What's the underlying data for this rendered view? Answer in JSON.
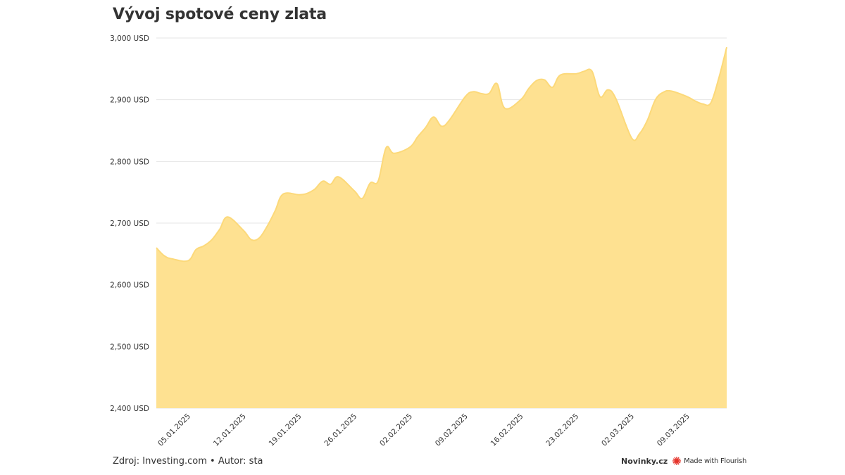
{
  "title": "Vývoj spotové ceny zlata",
  "footer": {
    "source": "Zdroj: Investing.com • Autor: sta",
    "brand": "Novinky.cz",
    "made_with": "Made with Flourish",
    "logo_icon": "flourish-starburst-icon",
    "logo_color": "#e5332a"
  },
  "chart_data": {
    "type": "area",
    "title": "Vývoj spotové ceny zlata",
    "xlabel": "",
    "ylabel": "",
    "ylim": [
      2400,
      3000
    ],
    "y_ticks": [
      2400,
      2500,
      2600,
      2700,
      2800,
      2900,
      3000
    ],
    "y_tick_labels": [
      "2,400 USD",
      "2,500 USD",
      "2,600 USD",
      "2,700 USD",
      "2,800 USD",
      "2,900 USD",
      "3,000 USD"
    ],
    "x_range": [
      "2025-01-01",
      "2025-03-14"
    ],
    "x_tick_labels": [
      "05.01.2025",
      "12.01.2025",
      "19.01.2025",
      "26.01.2025",
      "02.02.2025",
      "09.02.2025",
      "16.02.2025",
      "23.02.2025",
      "02.03.2025",
      "09.03.2025"
    ],
    "x_tick_dates": [
      "2025-01-05",
      "2025-01-12",
      "2025-01-19",
      "2025-01-26",
      "2025-02-02",
      "2025-02-09",
      "2025-02-16",
      "2025-02-23",
      "2025-03-02",
      "2025-03-09"
    ],
    "grid": true,
    "fill_color": "#fee191",
    "grid_color": "#e6e6e6",
    "series": [
      {
        "x": [
          "2025-01-01",
          "2025-01-02",
          "2025-01-03",
          "2025-01-05",
          "2025-01-06",
          "2025-01-07",
          "2025-01-08",
          "2025-01-09",
          "2025-01-10",
          "2025-01-12",
          "2025-01-13",
          "2025-01-14",
          "2025-01-15",
          "2025-01-16",
          "2025-01-17",
          "2025-01-19",
          "2025-01-20",
          "2025-01-21",
          "2025-01-22",
          "2025-01-23",
          "2025-01-24",
          "2025-01-26",
          "2025-01-27",
          "2025-01-28",
          "2025-01-29",
          "2025-01-30",
          "2025-01-31",
          "2025-02-02",
          "2025-02-03",
          "2025-02-04",
          "2025-02-05",
          "2025-02-06",
          "2025-02-07",
          "2025-02-09",
          "2025-02-10",
          "2025-02-11",
          "2025-02-12",
          "2025-02-13",
          "2025-02-14",
          "2025-02-16",
          "2025-02-17",
          "2025-02-18",
          "2025-02-19",
          "2025-02-20",
          "2025-02-21",
          "2025-02-23",
          "2025-02-24",
          "2025-02-25",
          "2025-02-26",
          "2025-02-27",
          "2025-02-28",
          "2025-03-02",
          "2025-03-03",
          "2025-03-04",
          "2025-03-05",
          "2025-03-06",
          "2025-03-07",
          "2025-03-09",
          "2025-03-10",
          "2025-03-11",
          "2025-03-12",
          "2025-03-13",
          "2025-03-14"
        ],
        "values": [
          2660,
          2647,
          2642,
          2639,
          2657,
          2663,
          2673,
          2690,
          2710,
          2688,
          2673,
          2676,
          2695,
          2720,
          2747,
          2746,
          2748,
          2755,
          2768,
          2763,
          2775,
          2752,
          2740,
          2765,
          2768,
          2822,
          2813,
          2823,
          2840,
          2855,
          2872,
          2857,
          2867,
          2905,
          2913,
          2910,
          2910,
          2926,
          2886,
          2900,
          2918,
          2931,
          2932,
          2920,
          2940,
          2942,
          2946,
          2946,
          2905,
          2916,
          2902,
          2838,
          2845,
          2867,
          2900,
          2912,
          2914,
          2905,
          2898,
          2893,
          2895,
          2935,
          2985
        ]
      }
    ]
  }
}
